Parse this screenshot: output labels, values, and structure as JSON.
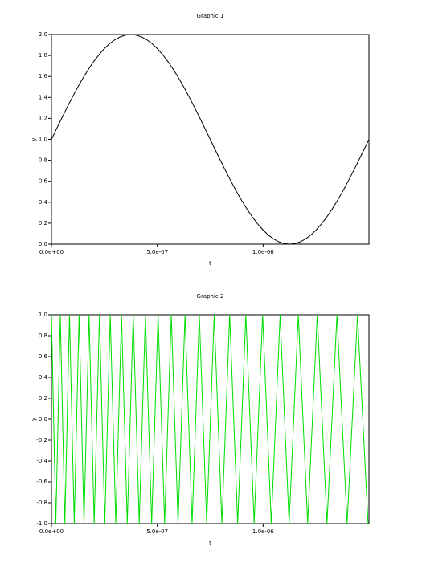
{
  "chart_data": [
    {
      "type": "line",
      "title": "Graphic 1",
      "xlabel": "t",
      "ylabel": "y",
      "color": "#000000",
      "xlim": [
        0,
        1.5e-06
      ],
      "ylim": [
        0,
        2
      ],
      "xticks": [
        {
          "value": 0,
          "label": "0.0e+00"
        },
        {
          "value": 5e-07,
          "label": "5.0e-07"
        },
        {
          "value": 1e-06,
          "label": "1.0e-06"
        }
      ],
      "yticks": [
        {
          "value": 0,
          "label": "0.0"
        },
        0.2,
        0.4,
        0.6,
        0.8,
        {
          "value": 1,
          "label": "1.0"
        },
        1.2,
        1.4,
        1.6,
        1.8,
        {
          "value": 2,
          "label": "2.0"
        }
      ],
      "x": [
        0,
        2.5e-08,
        5e-08,
        7.5e-08,
        1e-07,
        1.25e-07,
        1.5e-07,
        1.75e-07,
        2e-07,
        2.25e-07,
        2.5e-07,
        2.75e-07,
        3e-07,
        3.25e-07,
        3.5e-07,
        3.75e-07,
        4e-07,
        4.25e-07,
        4.5e-07,
        4.75e-07,
        5e-07,
        5.25e-07,
        5.5e-07,
        5.75e-07,
        6e-07,
        6.25e-07,
        6.5e-07,
        6.75e-07,
        7e-07,
        7.25e-07,
        7.5e-07,
        7.75e-07,
        8e-07,
        8.25e-07,
        8.5e-07,
        8.75e-07,
        9e-07,
        9.25e-07,
        9.5e-07,
        9.75e-07,
        1e-06,
        1.025e-06,
        1.05e-06,
        1.075e-06,
        1.1e-06,
        1.125e-06,
        1.15e-06,
        1.175e-06,
        1.2e-06,
        1.225e-06,
        1.25e-06,
        1.275e-06,
        1.3e-06,
        1.325e-06,
        1.35e-06,
        1.375e-06,
        1.4e-06,
        1.425e-06,
        1.45e-06,
        1.475e-06,
        1.5e-06
      ],
      "values": [
        1,
        1.1045,
        1.2079,
        1.309,
        1.4067,
        1.5,
        1.5878,
        1.6691,
        1.7431,
        1.809,
        1.866,
        1.9135,
        1.9511,
        1.9781,
        1.9945,
        2,
        1.9945,
        1.9781,
        1.9511,
        1.9135,
        1.866,
        1.809,
        1.7431,
        1.6691,
        1.5878,
        1.5,
        1.4067,
        1.309,
        1.2079,
        1.1045,
        1,
        0.8955,
        0.7921,
        0.691,
        0.5933,
        0.5,
        0.4122,
        0.3309,
        0.2569,
        0.191,
        0.134,
        0.0865,
        0.0489,
        0.0219,
        0.0055,
        0,
        0.0055,
        0.0219,
        0.0489,
        0.0865,
        0.134,
        0.191,
        0.2569,
        0.3309,
        0.4122,
        0.5,
        0.5933,
        0.691,
        0.7921,
        0.8955,
        1
      ]
    },
    {
      "type": "line",
      "title": "Graphic 2",
      "xlabel": "t",
      "ylabel": "y",
      "color": "#00dd00",
      "xlim": [
        0,
        1.5e-06
      ],
      "ylim": [
        -1,
        1
      ],
      "xticks": [
        {
          "value": 0,
          "label": "0.0e+00"
        },
        {
          "value": 5e-07,
          "label": "5.0e-07"
        },
        {
          "value": 1e-06,
          "label": "1.0e-06"
        }
      ],
      "yticks": [
        {
          "value": -1,
          "label": "-1.0"
        },
        -0.8,
        -0.6,
        -0.4,
        -0.2,
        {
          "value": 0,
          "label": "0.0"
        },
        0.2,
        0.4,
        0.6,
        0.8,
        {
          "value": 1,
          "label": "1.0"
        }
      ],
      "x": [
        0,
        2.068e-08,
        4.177e-08,
        6.331e-08,
        8.526e-08,
        1.0767e-07,
        1.3053e-07,
        1.5383e-07,
        1.7763e-07,
        2.0192e-07,
        2.2669e-07,
        2.5196e-07,
        2.7774e-07,
        3.0406e-07,
        3.309e-07,
        3.5827e-07,
        3.862e-07,
        4.147e-07,
        4.4376e-07,
        4.7342e-07,
        5.0368e-07,
        5.3455e-07,
        5.6605e-07,
        5.982e-07,
        6.3098e-07,
        6.6444e-07,
        6.9857e-07,
        7.3338e-07,
        7.6891e-07,
        8.0515e-07,
        8.4214e-07,
        8.7989e-07,
        9.1838e-07,
        9.5767e-07,
        9.9774e-07,
        1.03861e-06,
        1.0803e-06,
        1.12286e-06,
        1.16628e-06,
        1.21056e-06,
        1.25575e-06,
        1.30184e-06,
        1.34887e-06,
        1.39688e-06,
        1.44583e-06,
        1.49579e-06
      ],
      "values": [
        1,
        -1,
        1,
        -1,
        1,
        -1,
        1,
        -1,
        1,
        -1,
        1,
        -1,
        1,
        -1,
        1,
        -1,
        1,
        -1,
        1,
        -1,
        1,
        -1,
        1,
        -1,
        1,
        -1,
        1,
        -1,
        1,
        -1,
        1,
        -1,
        1,
        -1,
        1,
        -1,
        1,
        -1,
        1,
        -1,
        1,
        -1,
        1,
        -1,
        1,
        -1
      ]
    }
  ]
}
